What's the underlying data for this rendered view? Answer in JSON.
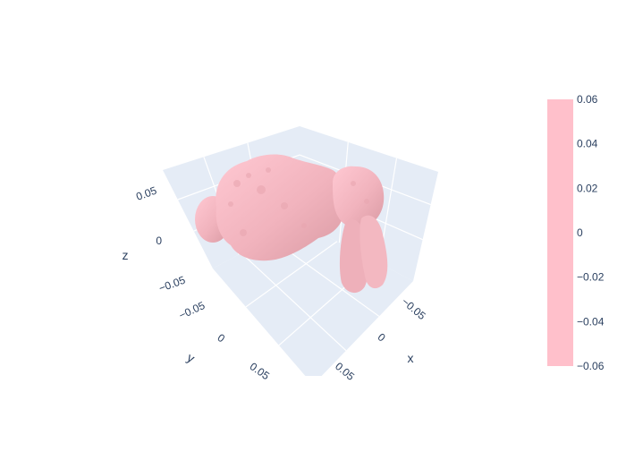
{
  "chart_data": {
    "type": "mesh3d",
    "title": "",
    "mesh_color": "#ffc0cb",
    "scene_bg_color": "#e5ecf6",
    "grid_color": "#ffffff",
    "text_color": "#2a3f5f",
    "axes": {
      "x": {
        "title": "x",
        "range": [
          -0.1,
          0.06
        ],
        "ticks": [
          "−0.05",
          "0",
          "0.05"
        ]
      },
      "y": {
        "title": "y",
        "range": [
          -0.1,
          0.1
        ],
        "ticks": [
          "−0.05",
          "0",
          "0.05"
        ]
      },
      "z": {
        "title": "z",
        "range": [
          -0.06,
          0.08
        ],
        "ticks": [
          "−0.05",
          "0",
          "0.05"
        ]
      }
    },
    "colorbar": {
      "range": [
        -0.06,
        0.06
      ],
      "ticks": [
        "0.06",
        "0.04",
        "0.02",
        "0",
        "−0.02",
        "−0.04",
        "−0.06"
      ],
      "color_low": "#ffc0cb",
      "color_high": "#ffc0cb"
    }
  }
}
